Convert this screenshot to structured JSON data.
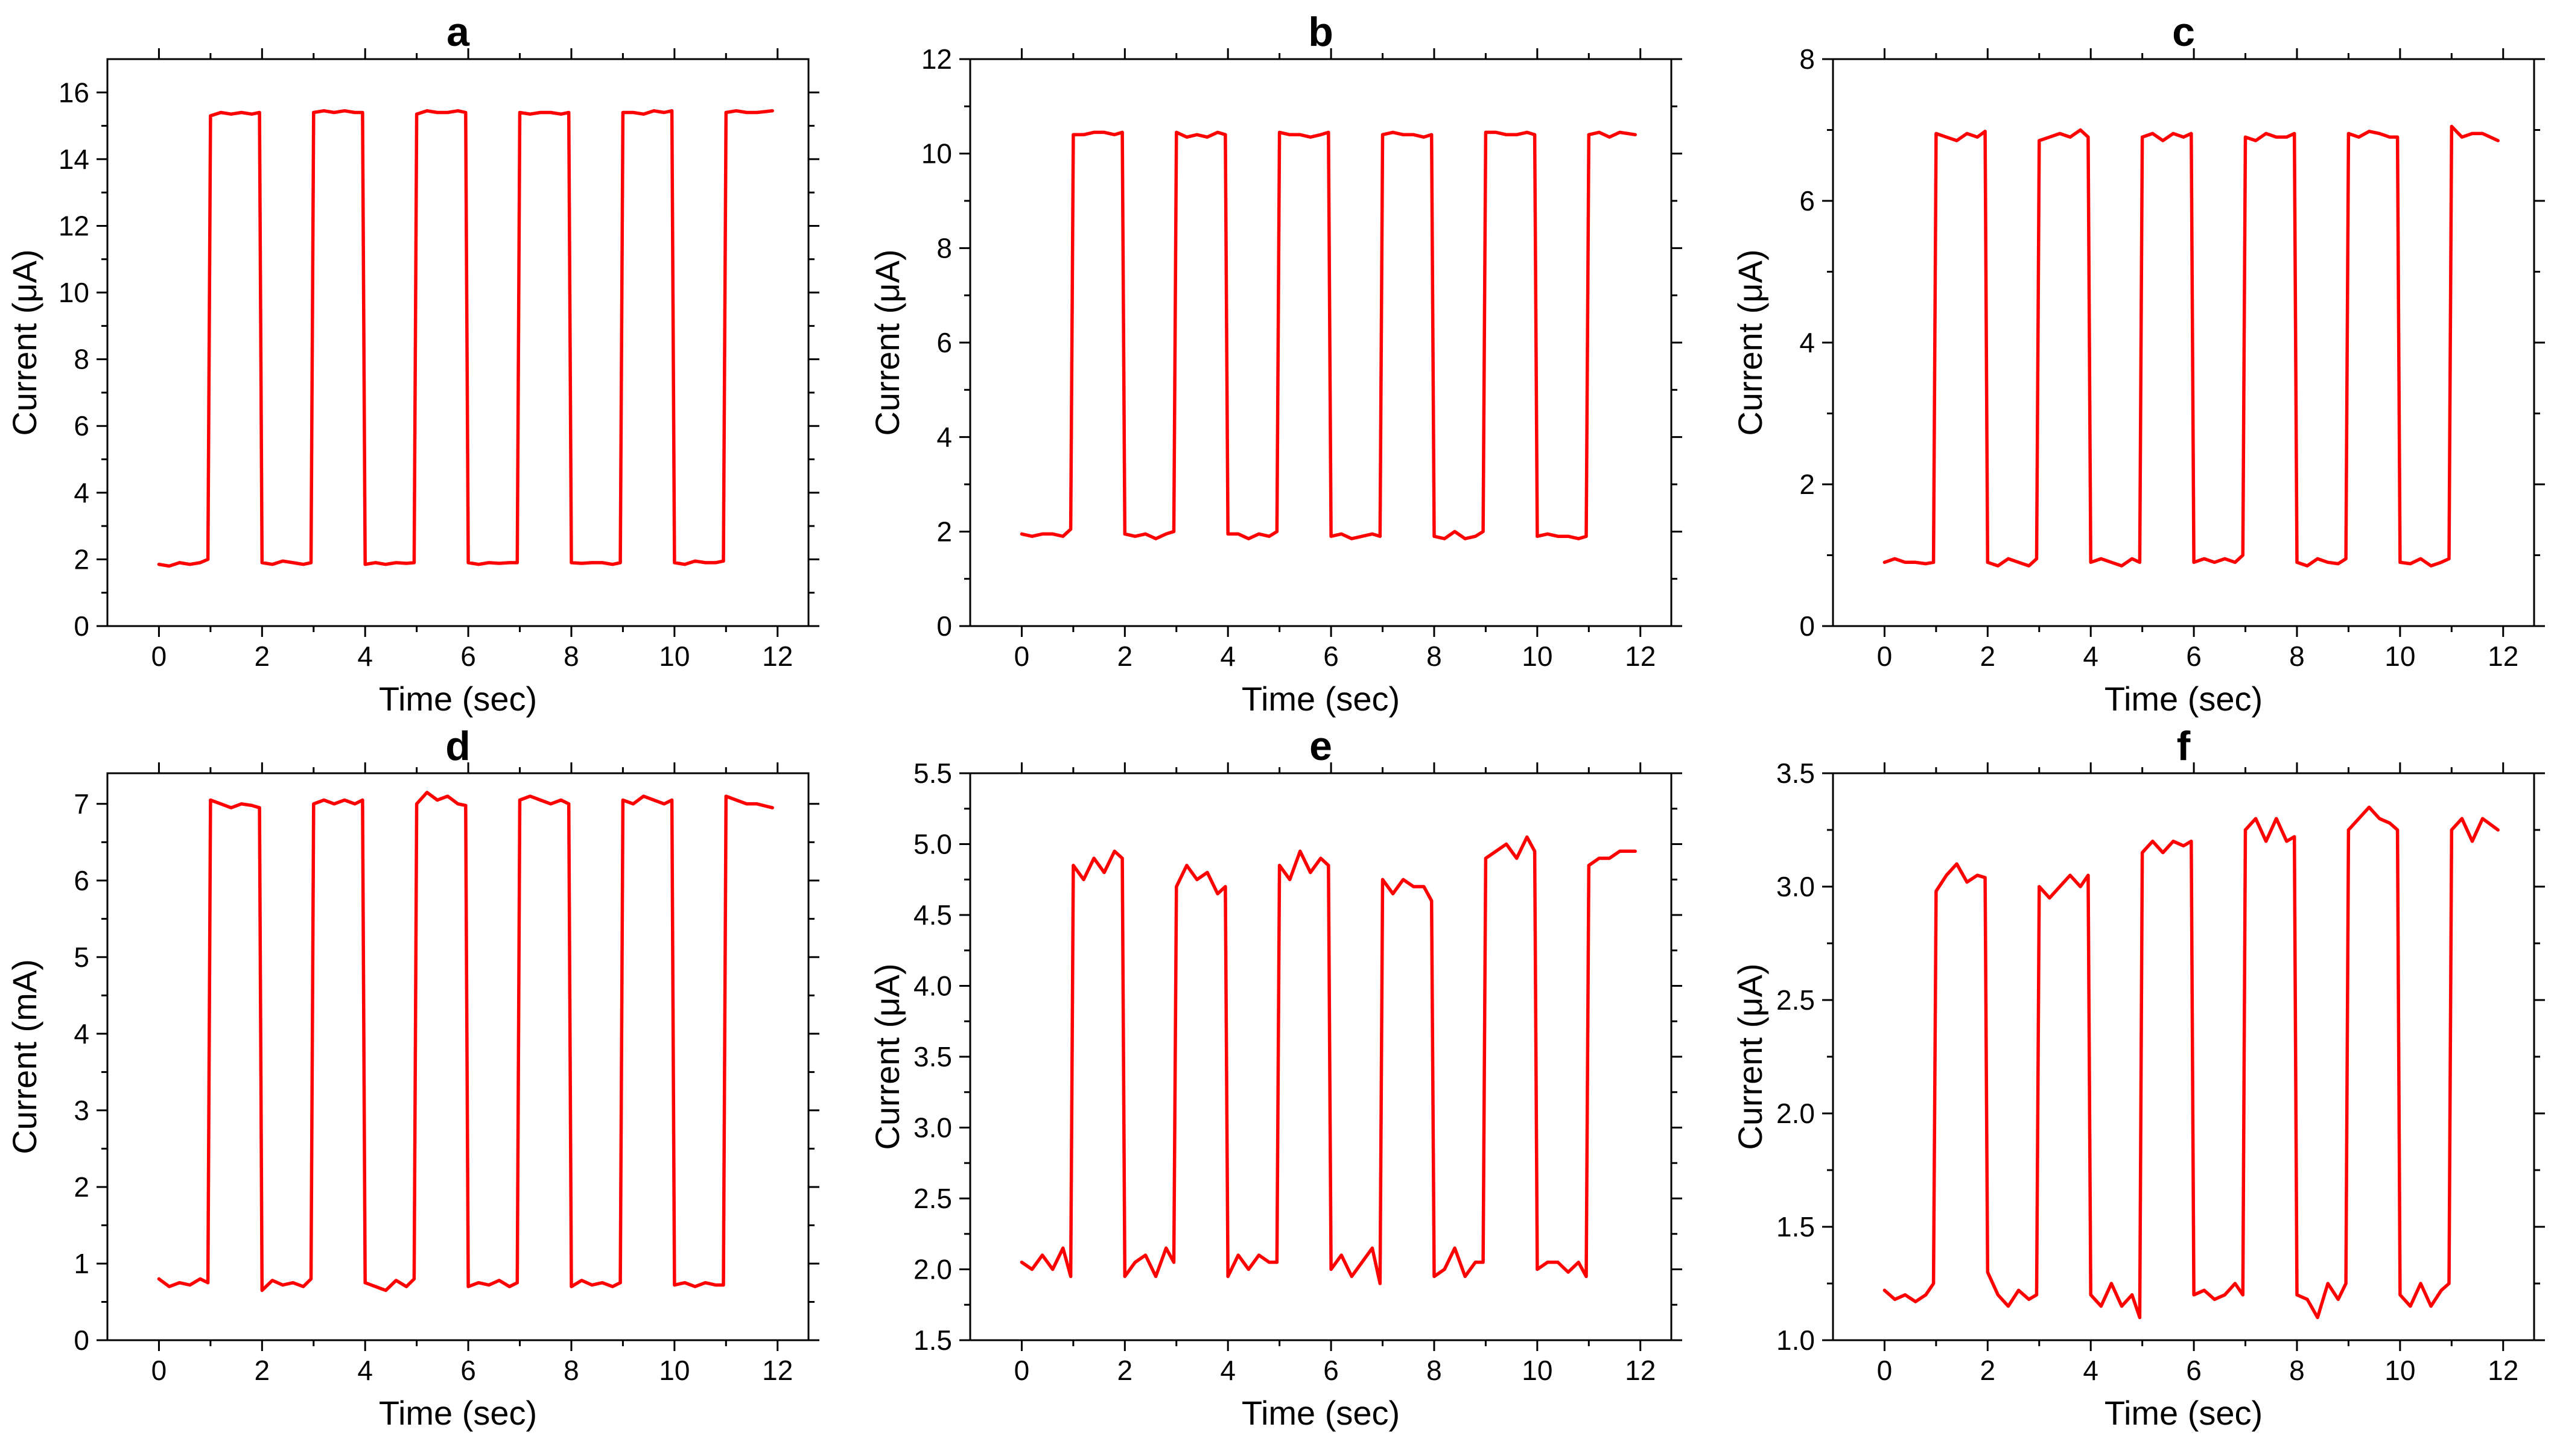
{
  "figure_layout": "2 rows x 3 columns",
  "line_color": "#ff0000",
  "chart_data": [
    {
      "panel": "a",
      "type": "line",
      "title": "a",
      "xlabel": "Time (sec)",
      "ylabel": "Current (μA)",
      "xlim": [
        -1,
        12.6
      ],
      "ylim": [
        0,
        17
      ],
      "xticks": [
        "0",
        "2",
        "4",
        "6",
        "8",
        "10",
        "12"
      ],
      "yticks": [
        "0",
        "2",
        "4",
        "6",
        "8",
        "10",
        "12",
        "14",
        "16"
      ],
      "x": [
        0,
        0.2,
        0.4,
        0.6,
        0.8,
        0.95,
        1.0,
        1.2,
        1.4,
        1.6,
        1.8,
        1.95,
        2.0,
        2.2,
        2.4,
        2.6,
        2.8,
        2.95,
        3.0,
        3.2,
        3.4,
        3.6,
        3.8,
        3.95,
        4.0,
        4.2,
        4.4,
        4.6,
        4.8,
        4.95,
        5.0,
        5.2,
        5.4,
        5.6,
        5.8,
        5.95,
        6.0,
        6.2,
        6.4,
        6.6,
        6.8,
        6.95,
        7.0,
        7.2,
        7.4,
        7.6,
        7.8,
        7.95,
        8.0,
        8.2,
        8.4,
        8.6,
        8.8,
        8.95,
        9.0,
        9.2,
        9.4,
        9.6,
        9.8,
        9.95,
        10.0,
        10.2,
        10.4,
        10.6,
        10.8,
        10.95,
        11.0,
        11.2,
        11.4,
        11.6,
        11.9
      ],
      "y": [
        1.85,
        1.8,
        1.9,
        1.85,
        1.9,
        2.0,
        15.3,
        15.4,
        15.35,
        15.4,
        15.35,
        15.4,
        1.9,
        1.85,
        1.95,
        1.9,
        1.85,
        1.9,
        15.4,
        15.45,
        15.4,
        15.45,
        15.4,
        15.4,
        1.85,
        1.9,
        1.85,
        1.9,
        1.88,
        1.9,
        15.35,
        15.45,
        15.4,
        15.4,
        15.45,
        15.4,
        1.9,
        1.85,
        1.9,
        1.88,
        1.9,
        1.9,
        15.4,
        15.35,
        15.4,
        15.4,
        15.35,
        15.4,
        1.9,
        1.88,
        1.9,
        1.9,
        1.85,
        1.9,
        15.4,
        15.4,
        15.35,
        15.45,
        15.4,
        15.45,
        1.9,
        1.85,
        1.95,
        1.9,
        1.9,
        1.95,
        15.4,
        15.45,
        15.4,
        15.4,
        15.45
      ]
    },
    {
      "panel": "b",
      "type": "line",
      "title": "b",
      "xlabel": "Time (sec)",
      "ylabel": "Current (μA)",
      "xlim": [
        -1,
        12.6
      ],
      "ylim": [
        0,
        12
      ],
      "xticks": [
        "0",
        "2",
        "4",
        "6",
        "8",
        "10",
        "12"
      ],
      "yticks": [
        "0",
        "2",
        "4",
        "6",
        "8",
        "10",
        "12"
      ],
      "x": [
        0,
        0.2,
        0.4,
        0.6,
        0.8,
        0.95,
        1.0,
        1.2,
        1.4,
        1.6,
        1.8,
        1.95,
        2.0,
        2.2,
        2.4,
        2.6,
        2.8,
        2.95,
        3.0,
        3.2,
        3.4,
        3.6,
        3.8,
        3.95,
        4.0,
        4.2,
        4.4,
        4.6,
        4.8,
        4.95,
        5.0,
        5.2,
        5.4,
        5.6,
        5.8,
        5.95,
        6.0,
        6.2,
        6.4,
        6.6,
        6.8,
        6.95,
        7.0,
        7.2,
        7.4,
        7.6,
        7.8,
        7.95,
        8.0,
        8.2,
        8.4,
        8.6,
        8.8,
        8.95,
        9.0,
        9.2,
        9.4,
        9.6,
        9.8,
        9.95,
        10.0,
        10.2,
        10.4,
        10.6,
        10.8,
        10.95,
        11.0,
        11.2,
        11.4,
        11.6,
        11.9
      ],
      "y": [
        1.95,
        1.9,
        1.95,
        1.95,
        1.9,
        2.05,
        10.4,
        10.4,
        10.45,
        10.45,
        10.4,
        10.45,
        1.95,
        1.9,
        1.95,
        1.85,
        1.95,
        2.0,
        10.45,
        10.35,
        10.4,
        10.35,
        10.45,
        10.4,
        1.95,
        1.95,
        1.85,
        1.95,
        1.9,
        2.0,
        10.45,
        10.4,
        10.4,
        10.35,
        10.4,
        10.45,
        1.9,
        1.95,
        1.85,
        1.9,
        1.95,
        1.9,
        10.4,
        10.45,
        10.4,
        10.4,
        10.35,
        10.4,
        1.9,
        1.85,
        2.0,
        1.85,
        1.9,
        2.0,
        10.45,
        10.45,
        10.4,
        10.4,
        10.45,
        10.4,
        1.9,
        1.95,
        1.9,
        1.9,
        1.85,
        1.9,
        10.4,
        10.45,
        10.35,
        10.45,
        10.4
      ]
    },
    {
      "panel": "c",
      "type": "line",
      "title": "c",
      "xlabel": "Time (sec)",
      "ylabel": "Current (μA)",
      "xlim": [
        -1,
        12.6
      ],
      "ylim": [
        0,
        8
      ],
      "xticks": [
        "0",
        "2",
        "4",
        "6",
        "8",
        "10",
        "12"
      ],
      "yticks": [
        "0",
        "2",
        "4",
        "6",
        "8"
      ],
      "x": [
        0,
        0.2,
        0.4,
        0.6,
        0.8,
        0.95,
        1.0,
        1.2,
        1.4,
        1.6,
        1.8,
        1.95,
        2.0,
        2.2,
        2.4,
        2.6,
        2.8,
        2.95,
        3.0,
        3.2,
        3.4,
        3.6,
        3.8,
        3.95,
        4.0,
        4.2,
        4.4,
        4.6,
        4.8,
        4.95,
        5.0,
        5.2,
        5.4,
        5.6,
        5.8,
        5.95,
        6.0,
        6.2,
        6.4,
        6.6,
        6.8,
        6.95,
        7.0,
        7.2,
        7.4,
        7.6,
        7.8,
        7.95,
        8.0,
        8.2,
        8.4,
        8.6,
        8.8,
        8.95,
        9.0,
        9.2,
        9.4,
        9.6,
        9.8,
        9.95,
        10.0,
        10.2,
        10.4,
        10.6,
        10.8,
        10.95,
        11.0,
        11.2,
        11.4,
        11.6,
        11.9
      ],
      "y": [
        0.9,
        0.95,
        0.9,
        0.9,
        0.88,
        0.9,
        6.95,
        6.9,
        6.85,
        6.95,
        6.9,
        6.98,
        0.9,
        0.85,
        0.95,
        0.9,
        0.85,
        0.95,
        6.85,
        6.9,
        6.95,
        6.9,
        7.0,
        6.9,
        0.9,
        0.95,
        0.9,
        0.85,
        0.95,
        0.9,
        6.9,
        6.95,
        6.85,
        6.95,
        6.9,
        6.95,
        0.9,
        0.95,
        0.9,
        0.95,
        0.9,
        1.0,
        6.9,
        6.85,
        6.95,
        6.9,
        6.9,
        6.95,
        0.9,
        0.85,
        0.95,
        0.9,
        0.88,
        0.95,
        6.95,
        6.9,
        6.98,
        6.95,
        6.9,
        6.9,
        0.9,
        0.88,
        0.95,
        0.85,
        0.9,
        0.95,
        7.05,
        6.9,
        6.95,
        6.95,
        6.85
      ]
    },
    {
      "panel": "d",
      "type": "line",
      "title": "d",
      "xlabel": "Time (sec)",
      "ylabel": "Current (mA)",
      "xlim": [
        -1,
        12.6
      ],
      "ylim": [
        0,
        7.4
      ],
      "xticks": [
        "0",
        "2",
        "4",
        "6",
        "8",
        "10",
        "12"
      ],
      "yticks": [
        "0",
        "1",
        "2",
        "3",
        "4",
        "5",
        "6",
        "7"
      ],
      "x": [
        0,
        0.2,
        0.4,
        0.6,
        0.8,
        0.95,
        1.0,
        1.2,
        1.4,
        1.6,
        1.8,
        1.95,
        2.0,
        2.2,
        2.4,
        2.6,
        2.8,
        2.95,
        3.0,
        3.2,
        3.4,
        3.6,
        3.8,
        3.95,
        4.0,
        4.2,
        4.4,
        4.6,
        4.8,
        4.95,
        5.0,
        5.2,
        5.4,
        5.6,
        5.8,
        5.95,
        6.0,
        6.2,
        6.4,
        6.6,
        6.8,
        6.95,
        7.0,
        7.2,
        7.4,
        7.6,
        7.8,
        7.95,
        8.0,
        8.2,
        8.4,
        8.6,
        8.8,
        8.95,
        9.0,
        9.2,
        9.4,
        9.6,
        9.8,
        9.95,
        10.0,
        10.2,
        10.4,
        10.6,
        10.8,
        10.95,
        11.0,
        11.2,
        11.4,
        11.6,
        11.9
      ],
      "y": [
        0.8,
        0.7,
        0.75,
        0.72,
        0.8,
        0.75,
        7.05,
        7.0,
        6.95,
        7.0,
        6.98,
        6.95,
        0.65,
        0.78,
        0.72,
        0.75,
        0.7,
        0.8,
        7.0,
        7.05,
        7.0,
        7.05,
        7.0,
        7.05,
        0.75,
        0.7,
        0.65,
        0.78,
        0.7,
        0.8,
        7.0,
        7.15,
        7.05,
        7.1,
        7.0,
        6.98,
        0.7,
        0.75,
        0.72,
        0.78,
        0.7,
        0.75,
        7.05,
        7.1,
        7.05,
        7.0,
        7.05,
        7.0,
        0.7,
        0.78,
        0.72,
        0.75,
        0.7,
        0.75,
        7.05,
        7.0,
        7.1,
        7.05,
        7.0,
        7.05,
        0.72,
        0.75,
        0.7,
        0.75,
        0.72,
        0.72,
        7.1,
        7.05,
        7.0,
        7.0,
        6.95
      ]
    },
    {
      "panel": "e",
      "type": "line",
      "title": "e",
      "xlabel": "Time (sec)",
      "ylabel": "Current (μA)",
      "xlim": [
        -1,
        12.6
      ],
      "ylim": [
        1.5,
        5.5
      ],
      "xticks": [
        "0",
        "2",
        "4",
        "6",
        "8",
        "10",
        "12"
      ],
      "yticks": [
        "1.5",
        "2.0",
        "2.5",
        "3.0",
        "3.5",
        "4.0",
        "4.5",
        "5.0",
        "5.5"
      ],
      "x": [
        0,
        0.2,
        0.4,
        0.6,
        0.8,
        0.95,
        1.0,
        1.2,
        1.4,
        1.6,
        1.8,
        1.95,
        2.0,
        2.2,
        2.4,
        2.6,
        2.8,
        2.95,
        3.0,
        3.2,
        3.4,
        3.6,
        3.8,
        3.95,
        4.0,
        4.2,
        4.4,
        4.6,
        4.8,
        4.95,
        5.0,
        5.2,
        5.4,
        5.6,
        5.8,
        5.95,
        6.0,
        6.2,
        6.4,
        6.6,
        6.8,
        6.95,
        7.0,
        7.2,
        7.4,
        7.6,
        7.8,
        7.95,
        8.0,
        8.2,
        8.4,
        8.6,
        8.8,
        8.95,
        9.0,
        9.2,
        9.4,
        9.6,
        9.8,
        9.95,
        10.0,
        10.2,
        10.4,
        10.6,
        10.8,
        10.95,
        11.0,
        11.2,
        11.4,
        11.6,
        11.9
      ],
      "y": [
        2.05,
        2.0,
        2.1,
        2.0,
        2.15,
        1.95,
        4.85,
        4.75,
        4.9,
        4.8,
        4.95,
        4.9,
        1.95,
        2.05,
        2.1,
        1.95,
        2.15,
        2.05,
        4.7,
        4.85,
        4.75,
        4.8,
        4.65,
        4.7,
        1.95,
        2.1,
        2.0,
        2.1,
        2.05,
        2.05,
        4.85,
        4.75,
        4.95,
        4.8,
        4.9,
        4.85,
        2.0,
        2.1,
        1.95,
        2.05,
        2.15,
        1.9,
        4.75,
        4.65,
        4.75,
        4.7,
        4.7,
        4.6,
        1.95,
        2.0,
        2.15,
        1.95,
        2.05,
        2.05,
        4.9,
        4.95,
        5.0,
        4.9,
        5.05,
        4.95,
        2.0,
        2.05,
        2.05,
        1.98,
        2.05,
        1.95,
        4.85,
        4.9,
        4.9,
        4.95,
        4.95
      ]
    },
    {
      "panel": "f",
      "type": "line",
      "title": "f",
      "xlabel": "Time (sec)",
      "ylabel": "Current (μA)",
      "xlim": [
        -1,
        12.6
      ],
      "ylim": [
        1.0,
        3.5
      ],
      "xticks": [
        "0",
        "2",
        "4",
        "6",
        "8",
        "10",
        "12"
      ],
      "yticks": [
        "1.0",
        "1.5",
        "2.0",
        "2.5",
        "3.0",
        "3.5"
      ],
      "x": [
        0,
        0.2,
        0.4,
        0.6,
        0.8,
        0.95,
        1.0,
        1.2,
        1.4,
        1.6,
        1.8,
        1.95,
        2.0,
        2.2,
        2.4,
        2.6,
        2.8,
        2.95,
        3.0,
        3.2,
        3.4,
        3.6,
        3.8,
        3.95,
        4.0,
        4.2,
        4.4,
        4.6,
        4.8,
        4.95,
        5.0,
        5.2,
        5.4,
        5.6,
        5.8,
        5.95,
        6.0,
        6.2,
        6.4,
        6.6,
        6.8,
        6.95,
        7.0,
        7.2,
        7.4,
        7.6,
        7.8,
        7.95,
        8.0,
        8.2,
        8.4,
        8.6,
        8.8,
        8.95,
        9.0,
        9.2,
        9.4,
        9.6,
        9.8,
        9.95,
        10.0,
        10.2,
        10.4,
        10.6,
        10.8,
        10.95,
        11.0,
        11.2,
        11.4,
        11.6,
        11.9
      ],
      "y": [
        1.22,
        1.18,
        1.2,
        1.17,
        1.2,
        1.25,
        2.98,
        3.05,
        3.1,
        3.02,
        3.05,
        3.04,
        1.3,
        1.2,
        1.15,
        1.22,
        1.18,
        1.2,
        3.0,
        2.95,
        3.0,
        3.05,
        3.0,
        3.05,
        1.2,
        1.15,
        1.25,
        1.15,
        1.2,
        1.1,
        3.15,
        3.2,
        3.15,
        3.2,
        3.18,
        3.2,
        1.2,
        1.22,
        1.18,
        1.2,
        1.25,
        1.2,
        3.25,
        3.3,
        3.2,
        3.3,
        3.2,
        3.22,
        1.2,
        1.18,
        1.1,
        1.25,
        1.18,
        1.25,
        3.25,
        3.3,
        3.35,
        3.3,
        3.28,
        3.25,
        1.2,
        1.15,
        1.25,
        1.15,
        1.22,
        1.25,
        3.25,
        3.3,
        3.2,
        3.3,
        3.25
      ]
    }
  ]
}
